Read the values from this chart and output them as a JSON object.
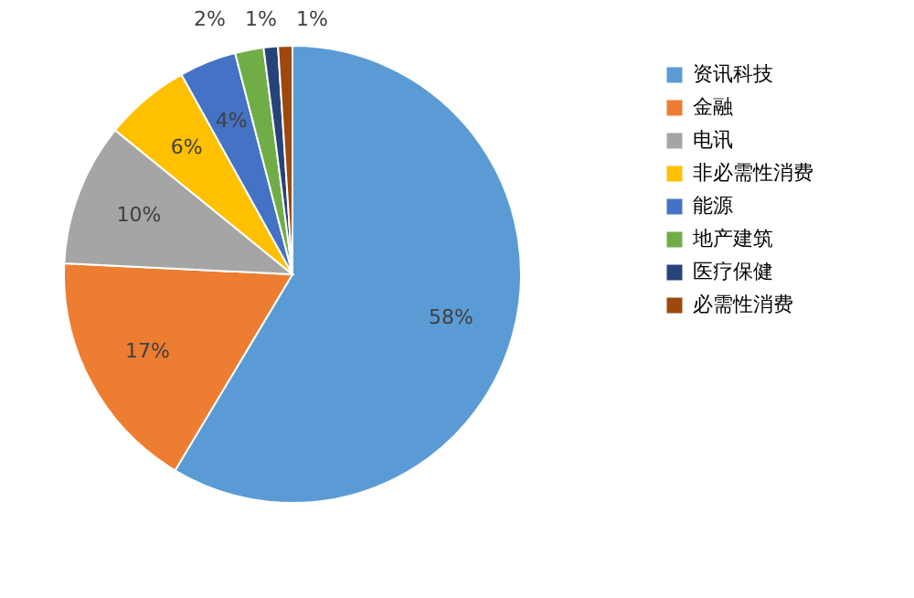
{
  "chart_data": {
    "type": "pie",
    "categories": [
      "资讯科技",
      "金融",
      "电讯",
      "非必需性消费",
      "能源",
      "地产建筑",
      "医疗保健",
      "必需性消费"
    ],
    "values": [
      58,
      17,
      10,
      6,
      4,
      2,
      1,
      1
    ],
    "colors": [
      "#5b9bd5",
      "#ed7d31",
      "#a5a5a5",
      "#ffc000",
      "#4472c4",
      "#70ad47",
      "#264478",
      "#9e480e"
    ],
    "value_labels": [
      "58%",
      "17%",
      "10%",
      "6%",
      "4%",
      "2%",
      "1%",
      "1%"
    ],
    "legend": "right"
  }
}
